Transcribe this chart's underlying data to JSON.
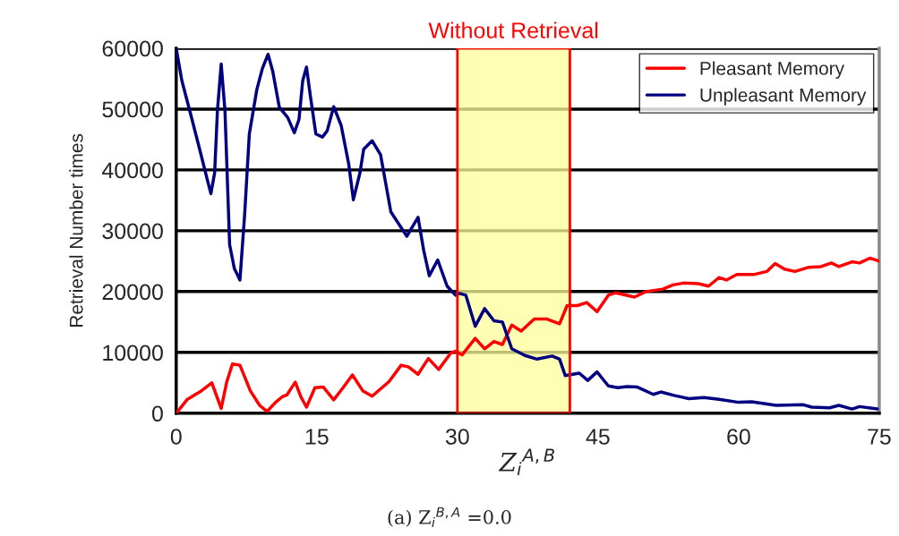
{
  "chart_data": {
    "type": "line",
    "xlabel": "Z$_{i}$$^{A,B}$",
    "ylabel": "Retrieval Number times",
    "xlim": [
      0,
      75
    ],
    "xticks": [
      0,
      15,
      30,
      45,
      60,
      75
    ],
    "ylim": [
      0,
      60000
    ],
    "yticks": [
      0,
      10000,
      20000,
      30000,
      40000,
      50000,
      60000
    ],
    "grid": "y",
    "legend": "top right",
    "marker": "none",
    "line_style": "solid",
    "bands": [
      {
        "axis": "x",
        "from": 30,
        "to": 42,
        "label": "Without Retrieval",
        "color": "#ffff99"
      }
    ],
    "annotations": [
      "(a) Z$_{i}$$^{B,A}$ =0.0"
    ],
    "series": [
      {
        "name": "Pleasant Memory",
        "color": "#ff0000",
        "x": [
          0,
          1.2,
          2.7,
          3.8,
          4.8,
          5.4,
          6.0,
          6.8,
          7.9,
          8.9,
          9.7,
          10.6,
          11.3,
          11.8,
          12.7,
          13.3,
          13.9,
          14.8,
          15.7,
          16.8,
          17.8,
          18.8,
          19.9,
          20.9,
          22.7,
          24.0,
          24.8,
          25.8,
          26.9,
          28.0,
          29.3,
          29.8,
          30.5,
          31.9,
          32.9,
          33.9,
          34.8,
          35.8,
          36.8,
          38.2,
          39.5,
          40.9,
          41.7,
          42.8,
          43.8,
          44.9,
          46.1,
          46.9,
          48.9,
          50.1,
          51.9,
          53.0,
          54.1,
          55.7,
          56.8,
          57.9,
          58.7,
          59.8,
          61.6,
          63.0,
          63.9,
          64.9,
          66.0,
          67.5,
          68.8,
          69.9,
          70.7,
          72.1,
          72.9,
          74.0,
          75.0
        ],
        "values": [
          0,
          2300,
          3700,
          5000,
          800,
          5200,
          8100,
          7900,
          3700,
          1300,
          300,
          1800,
          2700,
          3000,
          5100,
          2700,
          1000,
          4200,
          4300,
          2200,
          4200,
          6300,
          3700,
          2800,
          5200,
          7900,
          7600,
          6400,
          9000,
          7200,
          9900,
          10200,
          9600,
          12300,
          10600,
          11800,
          11300,
          14500,
          13500,
          15500,
          15500,
          14700,
          17700,
          17700,
          18200,
          16700,
          19400,
          19800,
          19100,
          20000,
          20400,
          21100,
          21400,
          21300,
          20900,
          22300,
          21900,
          22800,
          22800,
          23300,
          24600,
          23700,
          23300,
          24000,
          24100,
          24700,
          24100,
          24900,
          24700,
          25500,
          25000
        ]
      },
      {
        "name": "Unpleasant Memory",
        "color": "#000080",
        "x": [
          0,
          0.6,
          1.6,
          2.5,
          3.3,
          3.7,
          4.1,
          4.4,
          4.8,
          5.2,
          5.7,
          6.2,
          6.8,
          7.3,
          7.8,
          8.6,
          9.2,
          9.8,
          10.3,
          11.0,
          11.9,
          12.6,
          13.1,
          13.5,
          13.9,
          14.3,
          14.9,
          15.6,
          16.1,
          16.8,
          17.6,
          18.4,
          18.9,
          19.6,
          20.0,
          20.9,
          21.8,
          22.9,
          24.6,
          25.8,
          26.4,
          27.0,
          27.9,
          28.9,
          29.8,
          30.2,
          30.9,
          31.9,
          32.9,
          33.9,
          34.8,
          35.8,
          37.2,
          38.5,
          40.1,
          40.9,
          41.5,
          43.0,
          43.9,
          44.9,
          46.1,
          47.1,
          48.1,
          49.2,
          50.9,
          51.7,
          53.2,
          54.7,
          56.3,
          57.9,
          60.0,
          61.4,
          64.0,
          66.9,
          67.8,
          69.7,
          70.7,
          72.1,
          72.9,
          74.8
        ],
        "values": [
          60000,
          54700,
          48800,
          43400,
          38500,
          36100,
          39500,
          49800,
          57400,
          49800,
          27700,
          23800,
          21900,
          32600,
          45900,
          53200,
          56700,
          59000,
          56200,
          50300,
          48600,
          46100,
          48300,
          54700,
          56900,
          52300,
          45900,
          45400,
          46400,
          50400,
          47300,
          41000,
          35100,
          39500,
          43400,
          44800,
          42500,
          33100,
          29100,
          32200,
          26800,
          22600,
          25200,
          20900,
          19400,
          19700,
          19400,
          14300,
          17200,
          15200,
          15000,
          10600,
          9500,
          8900,
          9400,
          8900,
          6200,
          6600,
          5400,
          6800,
          4500,
          4200,
          4400,
          4300,
          3100,
          3500,
          2900,
          2400,
          2600,
          2300,
          1800,
          1900,
          1300,
          1400,
          1000,
          900,
          1300,
          700,
          1100,
          700
        ]
      }
    ]
  }
}
